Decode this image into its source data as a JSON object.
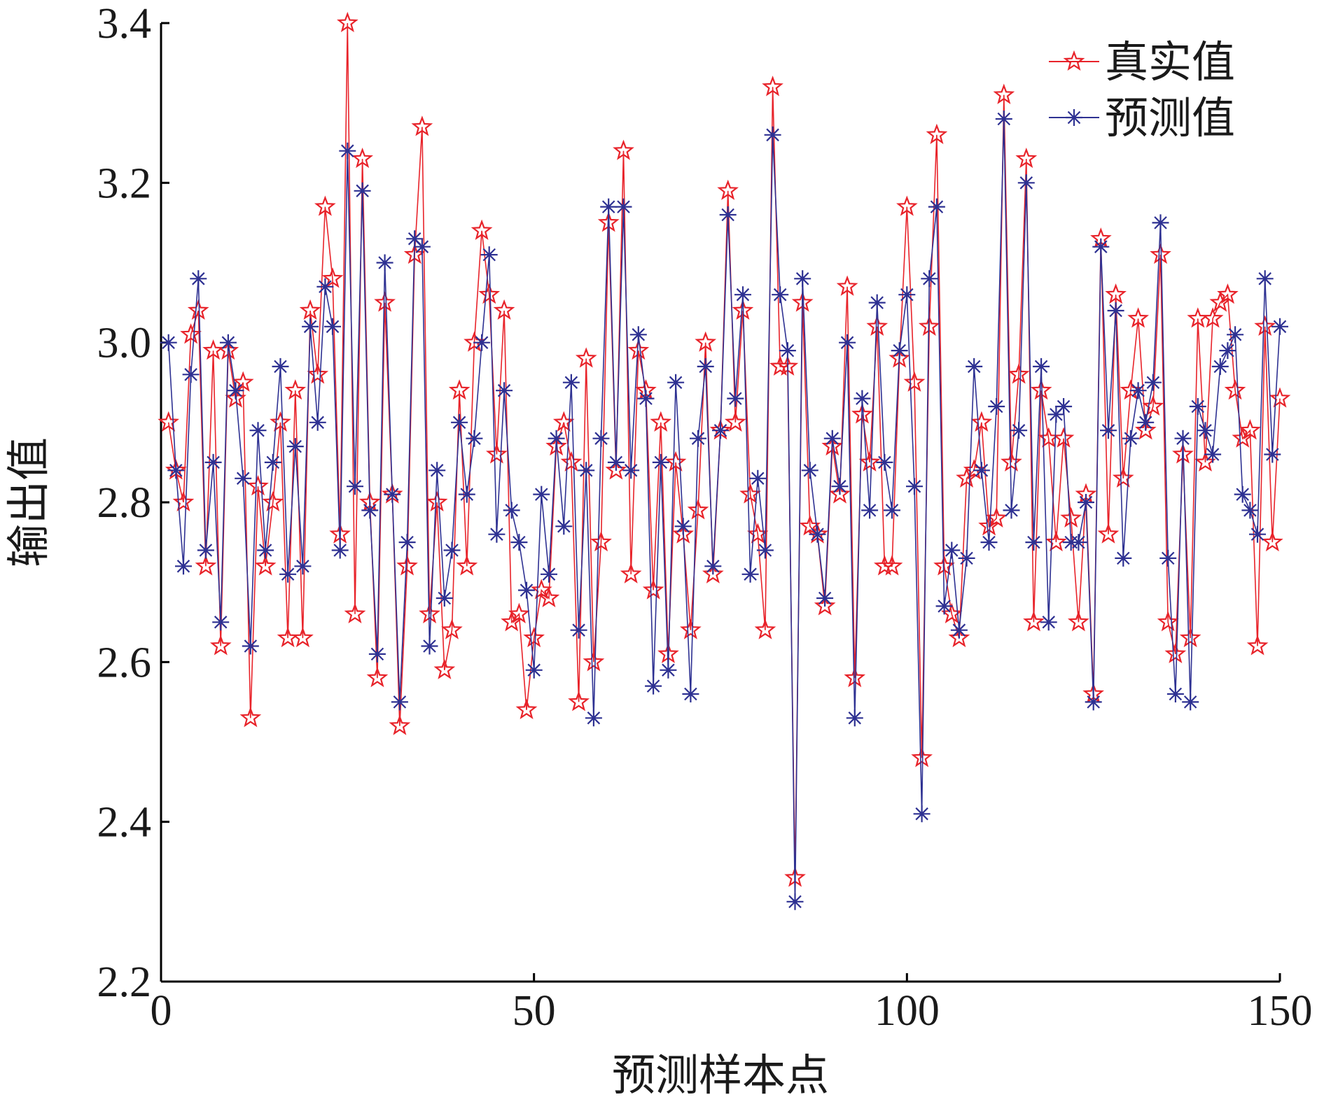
{
  "chart_data": {
    "type": "line",
    "xlabel": "预测样本点",
    "ylabel": "输出值",
    "xlim": [
      0,
      150
    ],
    "ylim": [
      2.2,
      3.4
    ],
    "xticks": [
      0,
      50,
      100,
      150
    ],
    "yticks": [
      2.2,
      2.4,
      2.6,
      2.8,
      3.0,
      3.2,
      3.4
    ],
    "xtick_labels": [
      "0",
      "50",
      "100",
      "150"
    ],
    "ytick_labels": [
      "2.2",
      "2.4",
      "2.6",
      "2.8",
      "3.0",
      "3.2",
      "3.4"
    ],
    "grid": false,
    "legend_position": "top-right",
    "x": [
      1,
      2,
      3,
      4,
      5,
      6,
      7,
      8,
      9,
      10,
      11,
      12,
      13,
      14,
      15,
      16,
      17,
      18,
      19,
      20,
      21,
      22,
      23,
      24,
      25,
      26,
      27,
      28,
      29,
      30,
      31,
      32,
      33,
      34,
      35,
      36,
      37,
      38,
      39,
      40,
      41,
      42,
      43,
      44,
      45,
      46,
      47,
      48,
      49,
      50,
      51,
      52,
      53,
      54,
      55,
      56,
      57,
      58,
      59,
      60,
      61,
      62,
      63,
      64,
      65,
      66,
      67,
      68,
      69,
      70,
      71,
      72,
      73,
      74,
      75,
      76,
      77,
      78,
      79,
      80,
      81,
      82,
      83,
      84,
      85,
      86,
      87,
      88,
      89,
      90,
      91,
      92,
      93,
      94,
      95,
      96,
      97,
      98,
      99,
      100,
      101,
      102,
      103,
      104,
      105,
      106,
      107,
      108,
      109,
      110,
      111,
      112,
      113,
      114,
      115,
      116,
      117,
      118,
      119,
      120,
      121,
      122,
      123,
      124,
      125,
      126,
      127,
      128,
      129,
      130,
      131,
      132,
      133,
      134,
      135,
      136,
      137,
      138,
      139,
      140,
      141,
      142,
      143,
      144,
      145,
      146,
      147,
      148,
      149,
      150
    ],
    "series": [
      {
        "name": "真实值",
        "color": "#e8232a",
        "marker": "star",
        "values": [
          2.9,
          2.84,
          2.8,
          3.01,
          3.04,
          2.72,
          2.99,
          2.62,
          2.99,
          2.93,
          2.95,
          2.53,
          2.82,
          2.72,
          2.8,
          2.9,
          2.63,
          2.94,
          2.63,
          3.04,
          2.96,
          3.17,
          3.08,
          2.76,
          3.4,
          2.66,
          3.23,
          2.8,
          2.58,
          3.05,
          2.81,
          2.52,
          2.72,
          3.11,
          3.27,
          2.66,
          2.8,
          2.59,
          2.64,
          2.94,
          2.72,
          3.0,
          3.14,
          3.06,
          2.86,
          3.04,
          2.65,
          2.66,
          2.54,
          2.63,
          2.69,
          2.68,
          2.87,
          2.9,
          2.85,
          2.55,
          2.98,
          2.6,
          2.75,
          3.15,
          2.84,
          3.24,
          2.71,
          2.99,
          2.94,
          2.69,
          2.9,
          2.61,
          2.85,
          2.76,
          2.64,
          2.79,
          3.0,
          2.71,
          2.89,
          3.19,
          2.9,
          3.04,
          2.81,
          2.76,
          2.64,
          3.32,
          2.97,
          2.97,
          2.33,
          3.05,
          2.77,
          2.76,
          2.67,
          2.87,
          2.81,
          3.07,
          2.58,
          2.91,
          2.85,
          3.02,
          2.72,
          2.72,
          2.98,
          3.17,
          2.95,
          2.48,
          3.02,
          3.26,
          2.72,
          2.66,
          2.63,
          2.83,
          2.84,
          2.9,
          2.77,
          2.78,
          3.31,
          2.85,
          2.96,
          3.23,
          2.65,
          2.94,
          2.88,
          2.75,
          2.88,
          2.78,
          2.65,
          2.81,
          2.56,
          3.13,
          2.76,
          3.06,
          2.83,
          2.94,
          3.03,
          2.89,
          2.92,
          3.11,
          2.65,
          2.61,
          2.86,
          2.63,
          3.03,
          2.85,
          3.03,
          3.05,
          3.06,
          2.94,
          2.88,
          2.89,
          2.62,
          3.02,
          2.75,
          2.93
        ]
      },
      {
        "name": "预测值",
        "color": "#2e3192",
        "marker": "asterisk",
        "values": [
          3.0,
          2.84,
          2.72,
          2.96,
          3.08,
          2.74,
          2.85,
          2.65,
          3.0,
          2.94,
          2.83,
          2.62,
          2.89,
          2.74,
          2.85,
          2.97,
          2.71,
          2.87,
          2.72,
          3.02,
          2.9,
          3.07,
          3.02,
          2.74,
          3.24,
          2.82,
          3.19,
          2.79,
          2.61,
          3.1,
          2.81,
          2.55,
          2.75,
          3.13,
          3.12,
          2.62,
          2.84,
          2.68,
          2.74,
          2.9,
          2.81,
          2.88,
          3.0,
          3.11,
          2.76,
          2.94,
          2.79,
          2.75,
          2.69,
          2.59,
          2.81,
          2.71,
          2.88,
          2.77,
          2.95,
          2.64,
          2.84,
          2.53,
          2.88,
          3.17,
          2.85,
          3.17,
          2.84,
          3.01,
          2.93,
          2.57,
          2.85,
          2.59,
          2.95,
          2.77,
          2.56,
          2.88,
          2.97,
          2.72,
          2.89,
          3.16,
          2.93,
          3.06,
          2.71,
          2.83,
          2.74,
          3.26,
          3.06,
          2.99,
          2.3,
          3.08,
          2.84,
          2.76,
          2.68,
          2.88,
          2.82,
          3.0,
          2.53,
          2.93,
          2.79,
          3.05,
          2.85,
          2.79,
          2.99,
          3.06,
          2.82,
          2.41,
          3.08,
          3.17,
          2.67,
          2.74,
          2.64,
          2.73,
          2.97,
          2.84,
          2.75,
          2.92,
          3.28,
          2.79,
          2.89,
          3.2,
          2.75,
          2.97,
          2.65,
          2.91,
          2.92,
          2.75,
          2.75,
          2.8,
          2.55,
          3.12,
          2.89,
          3.04,
          2.73,
          2.88,
          2.94,
          2.9,
          2.95,
          3.15,
          2.73,
          2.56,
          2.88,
          2.55,
          2.92,
          2.89,
          2.86,
          2.97,
          2.99,
          3.01,
          2.81,
          2.79,
          2.76,
          3.08,
          2.86,
          3.02
        ]
      }
    ]
  }
}
